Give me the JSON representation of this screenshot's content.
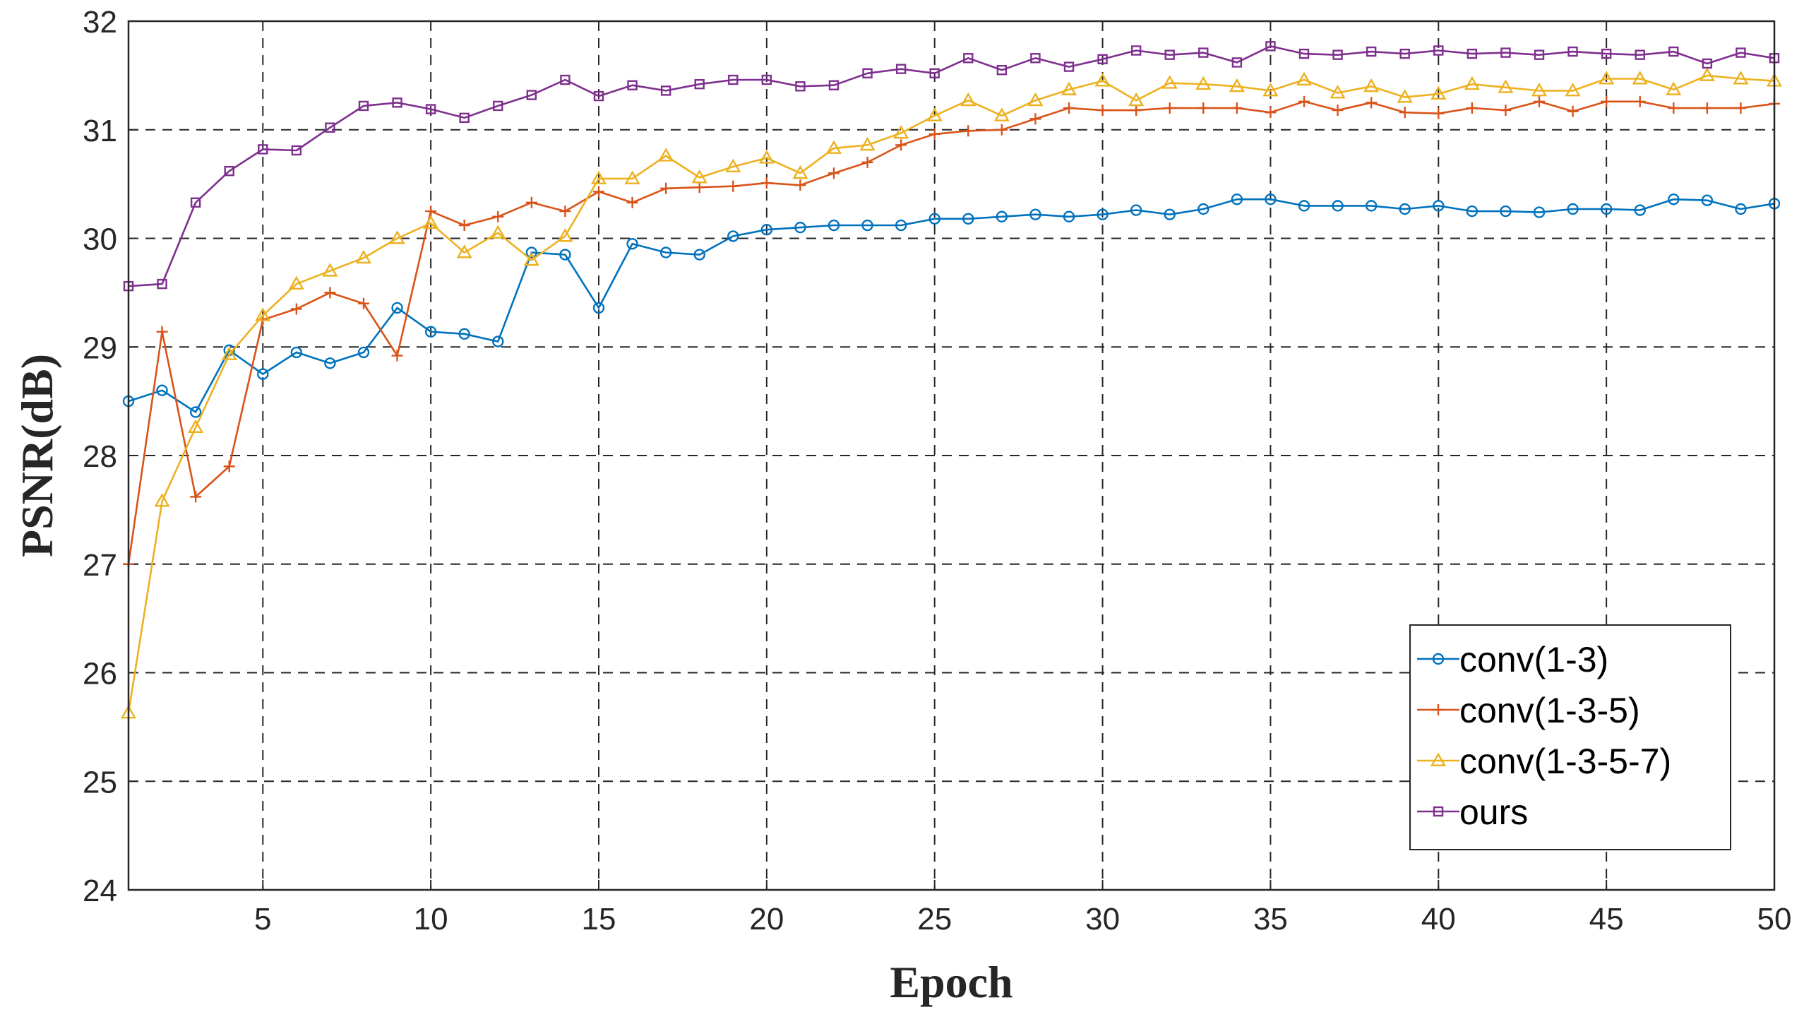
{
  "chart_data": {
    "type": "line",
    "title": "",
    "xlabel": "Epoch",
    "ylabel": "PSNR(dB)",
    "xlim": [
      1,
      50
    ],
    "ylim": [
      24,
      32
    ],
    "xticks": [
      5,
      10,
      15,
      20,
      25,
      30,
      35,
      40,
      45,
      50
    ],
    "yticks": [
      24,
      25,
      26,
      27,
      28,
      29,
      30,
      31,
      32
    ],
    "grid": true,
    "legend_position": "bottom-right",
    "x": [
      1,
      2,
      3,
      4,
      5,
      6,
      7,
      8,
      9,
      10,
      11,
      12,
      13,
      14,
      15,
      16,
      17,
      18,
      19,
      20,
      21,
      22,
      23,
      24,
      25,
      26,
      27,
      28,
      29,
      30,
      31,
      32,
      33,
      34,
      35,
      36,
      37,
      38,
      39,
      40,
      41,
      42,
      43,
      44,
      45,
      46,
      47,
      48,
      49,
      50
    ],
    "series": [
      {
        "name": "conv(1-3)",
        "color": "#0072BD",
        "marker": "circle",
        "values": [
          28.5,
          28.6,
          28.4,
          28.97,
          28.75,
          28.95,
          28.85,
          28.95,
          29.36,
          29.14,
          29.12,
          29.05,
          29.87,
          29.85,
          29.36,
          29.95,
          29.87,
          29.85,
          30.02,
          30.08,
          30.1,
          30.12,
          30.12,
          30.12,
          30.18,
          30.18,
          30.2,
          30.22,
          30.2,
          30.22,
          30.26,
          30.22,
          30.27,
          30.36,
          30.36,
          30.3,
          30.3,
          30.3,
          30.27,
          30.3,
          30.25,
          30.25,
          30.24,
          30.27,
          30.27,
          30.26,
          30.36,
          30.35,
          30.27,
          30.32
        ]
      },
      {
        "name": "conv(1-3-5)",
        "color": "#D95319",
        "marker": "plus",
        "values": [
          27.0,
          29.14,
          27.62,
          27.9,
          29.25,
          29.35,
          29.5,
          29.4,
          28.92,
          30.25,
          30.12,
          30.2,
          30.33,
          30.25,
          30.43,
          30.33,
          30.46,
          30.47,
          30.48,
          30.51,
          30.49,
          30.6,
          30.7,
          30.86,
          30.96,
          30.99,
          31.0,
          31.1,
          31.2,
          31.18,
          31.18,
          31.2,
          31.2,
          31.2,
          31.16,
          31.26,
          31.18,
          31.25,
          31.16,
          31.15,
          31.2,
          31.18,
          31.26,
          31.17,
          31.26,
          31.26,
          31.2,
          31.2,
          31.2,
          31.24
        ]
      },
      {
        "name": "conv(1-3-5-7)",
        "color": "#EDB120",
        "marker": "triangle",
        "values": [
          25.63,
          27.58,
          28.26,
          28.93,
          29.29,
          29.58,
          29.7,
          29.82,
          30.0,
          30.14,
          29.87,
          30.05,
          29.8,
          30.02,
          30.55,
          30.55,
          30.76,
          30.56,
          30.66,
          30.74,
          30.6,
          30.83,
          30.86,
          30.97,
          31.13,
          31.27,
          31.13,
          31.27,
          31.37,
          31.45,
          31.27,
          31.43,
          31.42,
          31.4,
          31.36,
          31.46,
          31.34,
          31.4,
          31.3,
          31.33,
          31.42,
          31.39,
          31.36,
          31.36,
          31.47,
          31.47,
          31.37,
          31.5,
          31.47,
          31.45
        ]
      },
      {
        "name": "ours",
        "color": "#7E2F8E",
        "marker": "square",
        "values": [
          29.56,
          29.58,
          30.33,
          30.62,
          30.82,
          30.81,
          31.02,
          31.22,
          31.25,
          31.19,
          31.11,
          31.22,
          31.32,
          31.46,
          31.31,
          31.41,
          31.36,
          31.42,
          31.46,
          31.46,
          31.4,
          31.41,
          31.52,
          31.56,
          31.52,
          31.66,
          31.55,
          31.66,
          31.58,
          31.65,
          31.73,
          31.69,
          31.71,
          31.62,
          31.77,
          31.7,
          31.69,
          31.72,
          31.7,
          31.73,
          31.7,
          31.71,
          31.69,
          31.72,
          31.7,
          31.69,
          31.72,
          31.61,
          31.71,
          31.66
        ]
      }
    ]
  }
}
